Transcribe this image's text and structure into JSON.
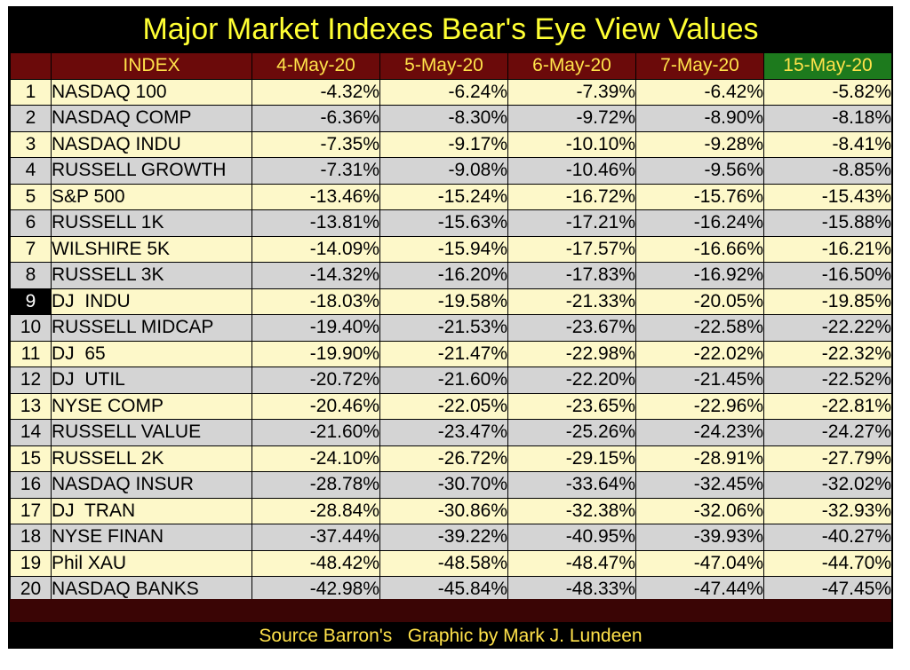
{
  "title": "Major Market Indexes Bear's Eye View Values",
  "source": "Source Barron's   Graphic by Mark J. Lundeen",
  "colors": {
    "header_bg": "#6b0a0a",
    "header_text": "#ffe24a",
    "highlight_header_bg": "#1d7a1d",
    "row_yellow": "#fdf8c9",
    "row_gray": "#d4d4d4",
    "title_text": "#ffff33"
  },
  "chart_data": {
    "type": "table",
    "title": "Major Market Indexes Bear's Eye View Values",
    "columns": [
      "",
      "INDEX",
      "4-May-20",
      "5-May-20",
      "6-May-20",
      "7-May-20",
      "15-May-20"
    ],
    "highlighted_column": "15-May-20",
    "highlighted_row": 9,
    "rows": [
      {
        "n": "1",
        "index": "NASDAQ 100",
        "values": [
          "-4.32%",
          "-6.24%",
          "-7.39%",
          "-6.42%",
          "-5.82%"
        ]
      },
      {
        "n": "2",
        "index": "NASDAQ COMP",
        "values": [
          "-6.36%",
          "-8.30%",
          "-9.72%",
          "-8.90%",
          "-8.18%"
        ]
      },
      {
        "n": "3",
        "index": "NASDAQ INDU",
        "values": [
          "-7.35%",
          "-9.17%",
          "-10.10%",
          "-9.28%",
          "-8.41%"
        ]
      },
      {
        "n": "4",
        "index": "RUSSELL GROWTH",
        "values": [
          "-7.31%",
          "-9.08%",
          "-10.46%",
          "-9.56%",
          "-8.85%"
        ]
      },
      {
        "n": "5",
        "index": "S&P 500",
        "values": [
          "-13.46%",
          "-15.24%",
          "-16.72%",
          "-15.76%",
          "-15.43%"
        ]
      },
      {
        "n": "6",
        "index": "RUSSELL 1K",
        "values": [
          "-13.81%",
          "-15.63%",
          "-17.21%",
          "-16.24%",
          "-15.88%"
        ]
      },
      {
        "n": "7",
        "index": "WILSHIRE 5K",
        "values": [
          "-14.09%",
          "-15.94%",
          "-17.57%",
          "-16.66%",
          "-16.21%"
        ]
      },
      {
        "n": "8",
        "index": "RUSSELL 3K",
        "values": [
          "-14.32%",
          "-16.20%",
          "-17.83%",
          "-16.92%",
          "-16.50%"
        ]
      },
      {
        "n": "9",
        "index": "DJ  INDU",
        "values": [
          "-18.03%",
          "-19.58%",
          "-21.33%",
          "-20.05%",
          "-19.85%"
        ]
      },
      {
        "n": "10",
        "index": "RUSSELL MIDCAP",
        "values": [
          "-19.40%",
          "-21.53%",
          "-23.67%",
          "-22.58%",
          "-22.22%"
        ]
      },
      {
        "n": "11",
        "index": "DJ  65",
        "values": [
          "-19.90%",
          "-21.47%",
          "-22.98%",
          "-22.02%",
          "-22.32%"
        ]
      },
      {
        "n": "12",
        "index": "DJ  UTIL",
        "values": [
          "-20.72%",
          "-21.60%",
          "-22.20%",
          "-21.45%",
          "-22.52%"
        ]
      },
      {
        "n": "13",
        "index": "NYSE COMP",
        "values": [
          "-20.46%",
          "-22.05%",
          "-23.65%",
          "-22.96%",
          "-22.81%"
        ]
      },
      {
        "n": "14",
        "index": "RUSSELL VALUE",
        "values": [
          "-21.60%",
          "-23.47%",
          "-25.26%",
          "-24.23%",
          "-24.27%"
        ]
      },
      {
        "n": "15",
        "index": "RUSSELL 2K",
        "values": [
          "-24.10%",
          "-26.72%",
          "-29.15%",
          "-28.91%",
          "-27.79%"
        ]
      },
      {
        "n": "16",
        "index": "NASDAQ INSUR",
        "values": [
          "-28.78%",
          "-30.70%",
          "-33.64%",
          "-32.45%",
          "-32.02%"
        ]
      },
      {
        "n": "17",
        "index": "DJ  TRAN",
        "values": [
          "-28.84%",
          "-30.86%",
          "-32.38%",
          "-32.06%",
          "-32.93%"
        ]
      },
      {
        "n": "18",
        "index": "NYSE FINAN",
        "values": [
          "-37.44%",
          "-39.22%",
          "-40.95%",
          "-39.93%",
          "-40.27%"
        ]
      },
      {
        "n": "19",
        "index": "Phil XAU",
        "values": [
          "-48.42%",
          "-48.58%",
          "-48.47%",
          "-47.04%",
          "-44.70%"
        ]
      },
      {
        "n": "20",
        "index": "NASDAQ BANKS",
        "values": [
          "-42.98%",
          "-45.84%",
          "-48.33%",
          "-47.44%",
          "-47.45%"
        ]
      }
    ]
  }
}
